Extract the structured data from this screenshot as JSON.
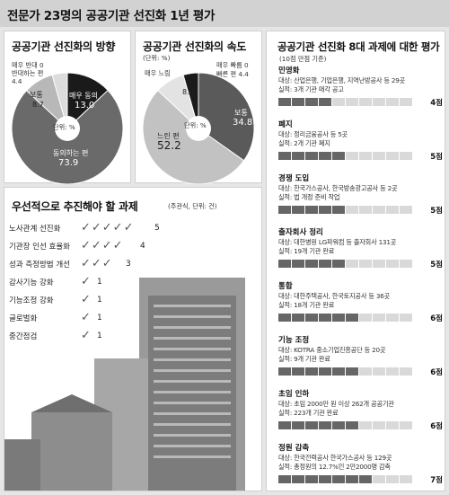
{
  "page": {
    "title": "전문가 23명의 공공기관 선진화 1년 평가"
  },
  "chart_data": [
    {
      "type": "pie",
      "title": "공공기관 선진화의 방향",
      "unit": "단위: %",
      "slices": [
        {
          "label": "매우 동의",
          "value": 13.0,
          "color": "#1a1a1a"
        },
        {
          "label": "동의하는 편",
          "value": 73.9,
          "color": "#6a6a6a"
        },
        {
          "label": "보통",
          "value": 8.7,
          "color": "#b8b8b8"
        },
        {
          "label": "반대하는 편",
          "value": 4.4,
          "color": "#dcdcdc"
        },
        {
          "label": "매우 반대",
          "value": 0,
          "color": "#ffffff"
        }
      ],
      "labels": {
        "very_oppose": "매우 반대 0",
        "oppose": "반대하는 편",
        "oppose_val": "4.4",
        "normal": "보통",
        "normal_val": "8.7",
        "very_agree": "매우 동의",
        "very_agree_val": "13.0",
        "agree": "동의하는 편",
        "agree_val": "73.9"
      }
    },
    {
      "type": "pie",
      "title": "공공기관 선진화의 속도",
      "unit": "단위: %",
      "slices": [
        {
          "label": "보통",
          "value": 34.8,
          "color": "#5a5a5a"
        },
        {
          "label": "느린 편",
          "value": 52.2,
          "color": "#c2c2c2"
        },
        {
          "label": "매우 느림",
          "value": 8.6,
          "color": "#e3e3e3"
        },
        {
          "label": "빠른 편",
          "value": 4.4,
          "color": "#1a1a1a"
        },
        {
          "label": "매우 빠름",
          "value": 0,
          "color": "#ffffff"
        }
      ],
      "labels": {
        "unit_top": "(단위: %)",
        "very_fast": "매우 빠름 0",
        "fast": "빠른 편 4.4",
        "very_slow": "매우 느림",
        "very_slow_val": "8.6",
        "normal": "보통",
        "normal_val": "34.8",
        "slow": "느린 편",
        "slow_val": "52.2"
      }
    },
    {
      "type": "bar",
      "title": "우선적으로 추진해야 할 과제",
      "unit": "(주관식, 단위: 건)",
      "categories": [
        "노사관계 선진화",
        "기관장 인선 효율화",
        "성과 측정방법 개선",
        "감사기능 강화",
        "기능조정 강화",
        "글로벌화",
        "중간점검"
      ],
      "values": [
        5,
        4,
        3,
        1,
        1,
        1,
        1
      ]
    },
    {
      "type": "bar",
      "title": "공공기관 선진화 8대 과제에 대한 평가",
      "unit": "(10점 만점 기준)",
      "tasks": [
        {
          "name": "민영화",
          "target": "대상: 산업은행, 기업은행, 지역난방공사 등 29곳",
          "result": "실적: 3개 기관 매각 공고",
          "score": 4,
          "score_label": "4점"
        },
        {
          "name": "폐지",
          "target": "대상: 정리금융공사 등 5곳",
          "result": "실적: 2개 기관 폐지",
          "score": 5,
          "score_label": "5점"
        },
        {
          "name": "경쟁 도입",
          "target": "대상: 한국가스공사, 한국방송광고공사 등 2곳",
          "result": "실적: 법 개정 준비 작업",
          "score": 5,
          "score_label": "5점"
        },
        {
          "name": "출자회사 정리",
          "target": "대상: 대한병원 LG파워컴 등 출자회사 131곳",
          "result": "실적: 19개 기관 완료",
          "score": 5,
          "score_label": "5점"
        },
        {
          "name": "통합",
          "target": "대상: 대한주택공사, 한국토지공사 등 36곳",
          "result": "실적: 18개 기관 완료",
          "score": 6,
          "score_label": "6점"
        },
        {
          "name": "기능 조정",
          "target": "대상: KOTRA 중소기업진흥공단 등 20곳",
          "result": "실적: 9개 기관 완료",
          "score": 6,
          "score_label": "6점"
        },
        {
          "name": "초임 인하",
          "target": "대상: 초임 2000만 원 이상 262개 공공기관",
          "result": "실적: 223개 기관 완료",
          "score": 6,
          "score_label": "6점"
        },
        {
          "name": "정원 감축",
          "target": "대상: 한국전력공사 한국가스공사 등 129곳",
          "result": "실적: 총정원의 12.7%인 2만2000명 감축",
          "score": 7,
          "score_label": "7점"
        }
      ]
    }
  ]
}
